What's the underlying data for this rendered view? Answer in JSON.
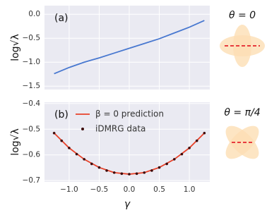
{
  "chart_data": [
    {
      "type": "line",
      "panel_label": "(a)",
      "y_label": "log√λ",
      "xlim": [
        -1.41,
        1.34
      ],
      "xticks": [
        -1.0,
        -0.5,
        0.0,
        0.5,
        1.0
      ],
      "ylim": [
        -1.57,
        0.18
      ],
      "yticks": [
        {
          "value": 0.0,
          "label": "0.0"
        },
        {
          "value": -0.5,
          "label": "−0.5"
        },
        {
          "value": -1.0,
          "label": "−1.0"
        },
        {
          "value": -1.5,
          "label": "−1.5"
        }
      ],
      "grid": true,
      "series": [
        {
          "mode": "line",
          "color": "#4878d0",
          "x": [
            -1.25,
            -1.0,
            -0.75,
            -0.5,
            -0.25,
            0.0,
            0.25,
            0.5,
            0.75,
            1.0,
            1.25
          ],
          "values": [
            -1.24,
            -1.11,
            -1.0,
            -0.91,
            -0.81,
            -0.71,
            -0.61,
            -0.51,
            -0.39,
            -0.27,
            -0.13
          ]
        }
      ]
    },
    {
      "type": "line",
      "panel_label": "(b)",
      "y_label": "log√λ",
      "x_label": "γ",
      "xlim": [
        -1.41,
        1.34
      ],
      "xticks": [
        {
          "value": -1.0,
          "label": "−1.0"
        },
        {
          "value": -0.5,
          "label": "−0.5"
        },
        {
          "value": 0.0,
          "label": "0.0"
        },
        {
          "value": 0.5,
          "label": "0.5"
        },
        {
          "value": 1.0,
          "label": "1.0"
        }
      ],
      "ylim": [
        -0.705,
        -0.395
      ],
      "yticks": [
        {
          "value": -0.4,
          "label": "−0.4"
        },
        {
          "value": -0.5,
          "label": "−0.5"
        },
        {
          "value": -0.6,
          "label": "−0.6"
        },
        {
          "value": -0.7,
          "label": "−0.7"
        }
      ],
      "grid": true,
      "series": [
        {
          "name": "β = 0 prediction",
          "mode": "line",
          "color": "#e8422a",
          "x": [
            -1.25,
            -1.0,
            -0.75,
            -0.5,
            -0.25,
            0.0,
            0.25,
            0.5,
            0.75,
            1.0,
            1.25
          ],
          "values": [
            -0.515,
            -0.573,
            -0.617,
            -0.649,
            -0.669,
            -0.675,
            -0.669,
            -0.649,
            -0.617,
            -0.573,
            -0.515
          ]
        },
        {
          "name": "iDMRG data",
          "mode": "markers",
          "color": "#3d0a0a",
          "x": [
            -1.25,
            -1.125,
            -1.0,
            -0.875,
            -0.75,
            -0.625,
            -0.5,
            -0.375,
            -0.25,
            -0.125,
            0.0,
            0.125,
            0.25,
            0.375,
            0.5,
            0.625,
            0.75,
            0.875,
            1.0,
            1.125,
            1.25
          ],
          "values": [
            -0.515,
            -0.545,
            -0.573,
            -0.597,
            -0.617,
            -0.635,
            -0.649,
            -0.661,
            -0.669,
            -0.673,
            -0.675,
            -0.673,
            -0.669,
            -0.661,
            -0.649,
            -0.635,
            -0.617,
            -0.597,
            -0.573,
            -0.545,
            -0.515
          ]
        }
      ]
    }
  ],
  "side_panels": [
    {
      "label": "θ = 0"
    },
    {
      "label": "θ = π/4"
    }
  ]
}
